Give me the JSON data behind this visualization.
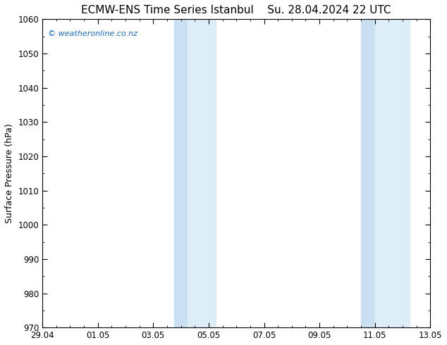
{
  "title_left": "ECMW-ENS Time Series Istanbul",
  "title_right": "Su. 28.04.2024 22 UTC",
  "ylabel": "Surface Pressure (hPa)",
  "ylim": [
    970,
    1060
  ],
  "yticks": [
    970,
    980,
    990,
    1000,
    1010,
    1020,
    1030,
    1040,
    1050,
    1060
  ],
  "xlim_start": 0,
  "xlim_end": 14,
  "xtick_positions": [
    0,
    2,
    4,
    6,
    8,
    10,
    12,
    14
  ],
  "xtick_labels": [
    "29.04",
    "01.05",
    "03.05",
    "05.05",
    "07.05",
    "09.05",
    "11.05",
    "13.05"
  ],
  "shaded_bands": [
    {
      "xmin": 4.75,
      "xmax": 5.5
    },
    {
      "xmin": 5.5,
      "xmax": 6.5
    },
    {
      "xmin": 11.5,
      "xmax": 12.25
    },
    {
      "xmin": 12.25,
      "xmax": 13.5
    }
  ],
  "shade_color_light": "#ddeef8",
  "shade_color_dark": "#c8e0f0",
  "shade_alpha": 1.0,
  "watermark": "© weatheronline.co.nz",
  "watermark_color": "#1a6ab5",
  "background_color": "#ffffff",
  "plot_bg_color": "#ffffff",
  "title_fontsize": 11,
  "axis_fontsize": 9,
  "tick_fontsize": 8.5,
  "border_color": "#000000"
}
